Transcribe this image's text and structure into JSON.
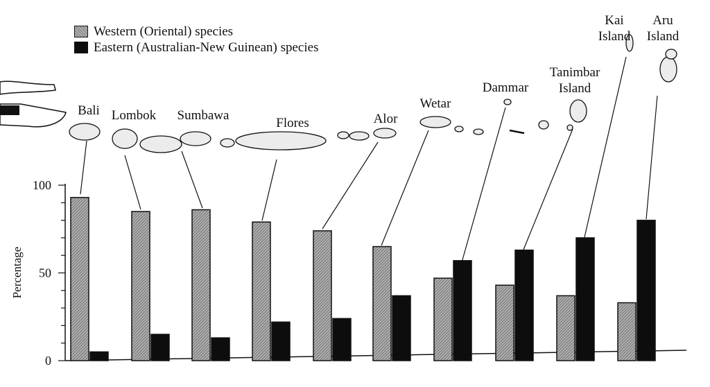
{
  "chart_data": {
    "type": "bar",
    "categories": [
      "Bali",
      "Lombok",
      "Sumbawa",
      "Flores",
      "Alor",
      "Wetar",
      "Dammar",
      "Tanimbar Island",
      "Kai Island",
      "Aru Island"
    ],
    "series": [
      {
        "name": "Western (Oriental) species",
        "values": [
          93,
          85,
          86,
          79,
          74,
          65,
          47,
          43,
          37,
          33
        ],
        "color": "#9a9a9a",
        "pattern": "stipple"
      },
      {
        "name": "Eastern (Australian-New Guinean) species",
        "values": [
          5,
          15,
          13,
          22,
          24,
          37,
          57,
          63,
          70,
          80
        ],
        "color": "#0d0d0d"
      }
    ],
    "ylabel": "Percentage",
    "yticks": [
      0,
      50,
      100
    ],
    "ytick_labels": [
      "0",
      "50",
      "100"
    ],
    "ylim": [
      0,
      100
    ],
    "legend_position": "top-left",
    "grid": false
  },
  "island_labels": [
    {
      "line1": "Bali",
      "line2": ""
    },
    {
      "line1": "Lombok",
      "line2": ""
    },
    {
      "line1": "Sumbawa",
      "line2": ""
    },
    {
      "line1": "Flores",
      "line2": ""
    },
    {
      "line1": "Alor",
      "line2": ""
    },
    {
      "line1": "Wetar",
      "line2": ""
    },
    {
      "line1": "Dammar",
      "line2": ""
    },
    {
      "line1": "Tanimbar",
      "line2": "Island"
    },
    {
      "line1": "Kai",
      "line2": "Island"
    },
    {
      "line1": "Aru",
      "line2": "Island"
    }
  ],
  "legend": {
    "western_label": "Western (Oriental) species",
    "eastern_label": "Eastern (Australian-New Guinean) species"
  }
}
